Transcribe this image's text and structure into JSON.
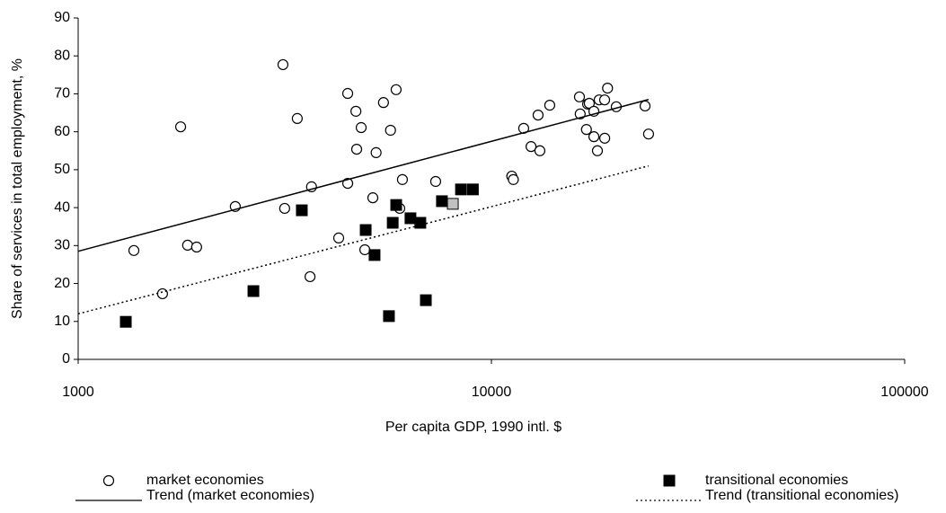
{
  "chart_data": {
    "type": "scatter",
    "xlabel": "Per capita GDP, 1990 intl. $",
    "ylabel": "Share of services in total employment, %",
    "xscale": "log",
    "xlim": [
      1000,
      100000
    ],
    "xticks": [
      1000,
      10000,
      100000
    ],
    "ylim": [
      0,
      90
    ],
    "yticks": [
      0,
      10,
      20,
      30,
      40,
      50,
      60,
      70,
      80,
      90
    ],
    "grid": false,
    "legend": "bottom",
    "series": [
      {
        "name": "market economies",
        "type": "scatter",
        "marker": "circle",
        "color": "#ffffff",
        "x": [
          1364,
          1600,
          1770,
          1840,
          1935,
          2400,
          3130,
          3160,
          3390,
          3640,
          3670,
          4270,
          4490,
          4490,
          4700,
          4720,
          4840,
          4940,
          5165,
          5260,
          5480,
          5700,
          5880,
          6000,
          6090,
          7330,
          11200,
          11300,
          11970,
          12470,
          12970,
          13100,
          13840,
          16330,
          16400,
          17090,
          16980,
          17250,
          17700,
          17700,
          18050,
          18230,
          18790,
          18800,
          19100,
          20050,
          23540,
          24000
        ],
        "values": [
          28.7,
          17.3,
          61.3,
          30.1,
          29.6,
          40.3,
          77.7,
          39.8,
          63.5,
          21.8,
          45.5,
          32.0,
          70.1,
          46.4,
          65.4,
          55.4,
          61.1,
          28.9,
          42.6,
          54.5,
          67.7,
          60.4,
          71.1,
          39.8,
          47.4,
          46.9,
          48.3,
          47.4,
          60.9,
          56.1,
          64.4,
          55.0,
          67.0,
          69.2,
          64.7,
          67.3,
          60.6,
          67.5,
          65.4,
          58.7,
          55.0,
          68.4,
          68.4,
          58.3,
          71.5,
          66.6,
          66.8,
          59.4
        ]
      },
      {
        "name": "transitional economies",
        "type": "scatter",
        "marker": "square",
        "color": "#000000",
        "x": [
          1304,
          2655,
          3477,
          4963,
          5215,
          5650,
          5770,
          5883,
          6370,
          6730,
          6940,
          7590,
          8065,
          8440,
          9020
        ],
        "values": [
          9.9,
          18.0,
          39.3,
          34.1,
          27.5,
          11.4,
          36.0,
          40.7,
          37.2,
          36.0,
          15.6,
          41.7,
          41.0,
          44.8,
          44.8
        ],
        "colors": [
          "#000000",
          "#000000",
          "#000000",
          "#000000",
          "#000000",
          "#000000",
          "#000000",
          "#000000",
          "#000000",
          "#000000",
          "#000000",
          "#000000",
          "#c0c0c0",
          "#000000",
          "#000000"
        ]
      },
      {
        "name": "Trend (market economies)",
        "type": "line",
        "dash": "solid",
        "color": "#000000",
        "x": [
          1000,
          24000
        ],
        "values": [
          28.5,
          68.5
        ]
      },
      {
        "name": "Trend (transitional economies)",
        "type": "line",
        "dash": "dotted",
        "color": "#000000",
        "x": [
          1000,
          24000
        ],
        "values": [
          12,
          51
        ]
      }
    ]
  }
}
